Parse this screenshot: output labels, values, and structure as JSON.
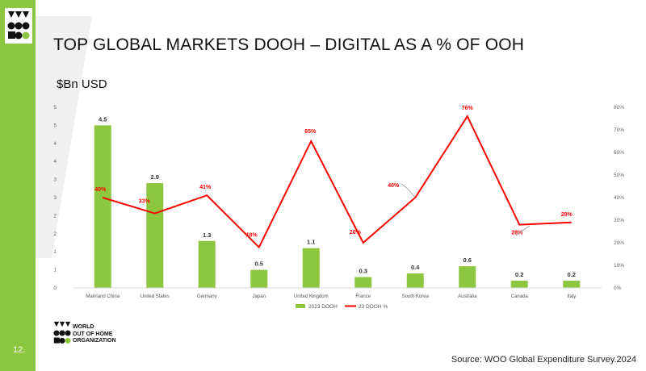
{
  "slide": {
    "title": "TOP GLOBAL MARKETS DOOH – DIGITAL AS A % OF OOH",
    "unit": "$Bn USD",
    "page_number": "12.",
    "source": "Source: WOO Global Expenditure Survey.2024",
    "org_lines": [
      "WORLD",
      "OUT OF HOME",
      "ORGANIZATION"
    ]
  },
  "colors": {
    "brand_green": "#8dc63f",
    "bar_green": "#8dc63f",
    "line_red": "#ff0000"
  },
  "chart_data": {
    "type": "bar",
    "categories": [
      "Mainland China",
      "United States",
      "Germany",
      "Japan",
      "United Kingdom",
      "France",
      "South Korea",
      "Australia",
      "Canada",
      "Italy"
    ],
    "series": [
      {
        "name": "2023 DOOH",
        "type": "bar",
        "axis": "left",
        "values": [
          4.5,
          2.9,
          1.3,
          0.5,
          1.1,
          0.3,
          0.4,
          0.6,
          0.2,
          0.2
        ],
        "labels": [
          "4.5",
          "2.9",
          "1.3",
          "0.5",
          "1.1",
          "0.3",
          "0.4",
          "0.6",
          "0.2",
          "0.2"
        ]
      },
      {
        "name": "23 DOOH %",
        "type": "line",
        "axis": "right",
        "values": [
          40,
          33,
          41,
          18,
          65,
          20,
          40,
          76,
          28,
          29
        ],
        "labels": [
          "40%",
          "33%",
          "41%",
          "18%",
          "65%",
          "20%",
          "40%",
          "76%",
          "28%",
          "29%"
        ]
      }
    ],
    "y_left": {
      "ticks": [
        "0",
        "1",
        "1",
        "2",
        "2",
        "3",
        "3",
        "4",
        "4",
        "5",
        "5"
      ]
    },
    "y_right": {
      "ticks": [
        "0%",
        "10%",
        "20%",
        "30%",
        "40%",
        "50%",
        "60%",
        "70%",
        "80%"
      ],
      "range": [
        0,
        80
      ]
    },
    "legend_position": "bottom"
  }
}
